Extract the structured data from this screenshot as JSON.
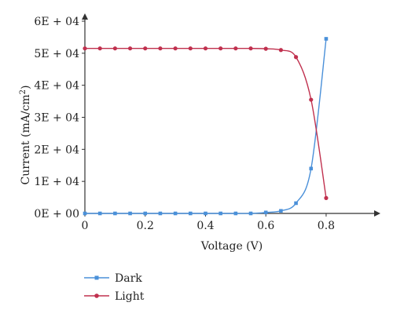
{
  "chart_data": {
    "type": "line",
    "ylabel_main": "Current (mA/cm",
    "ylabel_sup": "2",
    "ylabel_end": ")",
    "xlabel": "Voltage (V)",
    "xlim": [
      0,
      0.98
    ],
    "ylim": [
      0,
      60000
    ],
    "grid": false,
    "legend_position": "bottom-left",
    "x_ticks": [
      0,
      0.2,
      0.4,
      0.6,
      0.8
    ],
    "x_tick_labels": [
      "0",
      "0.2",
      "0.4",
      "0.6",
      "0.8"
    ],
    "y_ticks": [
      0,
      10000,
      20000,
      30000,
      40000,
      50000,
      60000
    ],
    "y_tick_labels": [
      "0E + 00",
      "1E + 04",
      "2E + 04",
      "3E + 04",
      "4E + 04",
      "5E + 04",
      "6E + 04"
    ],
    "series": [
      {
        "name": "Dark",
        "color": "#4a90d9",
        "marker": "square",
        "x": [
          0,
          0.05,
          0.1,
          0.15,
          0.2,
          0.25,
          0.3,
          0.35,
          0.4,
          0.45,
          0.5,
          0.55,
          0.6,
          0.65,
          0.7,
          0.75,
          0.8
        ],
        "y": [
          0,
          0,
          0,
          0,
          0,
          0,
          0,
          0,
          0,
          0,
          0,
          0,
          300,
          800,
          3200,
          14000,
          54500
        ]
      },
      {
        "name": "Light",
        "color": "#c0304e",
        "marker": "circle",
        "x": [
          0,
          0.05,
          0.1,
          0.15,
          0.2,
          0.25,
          0.3,
          0.35,
          0.4,
          0.45,
          0.5,
          0.55,
          0.6,
          0.65,
          0.7,
          0.75,
          0.8
        ],
        "y": [
          51500,
          51500,
          51500,
          51500,
          51500,
          51500,
          51500,
          51500,
          51500,
          51500,
          51500,
          51500,
          51400,
          51000,
          48800,
          35500,
          4800
        ]
      }
    ]
  }
}
